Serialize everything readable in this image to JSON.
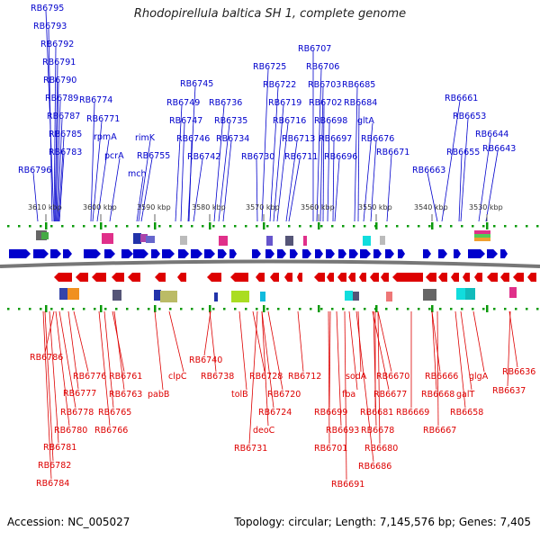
{
  "title": "Rhodopirellula baltica SH 1, complete genome",
  "footer": {
    "accession": "Accession: NC_005027",
    "summary": "Topology: circular; Length: 7,145,576 bp; Genes: 7,405"
  },
  "colors": {
    "forward": "#0000cc",
    "reverse": "#dd0000",
    "backbone": "#888888",
    "tick": "#0a9a0a"
  },
  "scale_ticks": [
    "3610 kbp",
    "3600 kbp",
    "3590 kbp",
    "3580 kbp",
    "3570 kbp",
    "3560 kbp",
    "3550 kbp",
    "3540 kbp",
    "3530 kbp"
  ],
  "forward_labels": [
    "RB6795",
    "RB6793",
    "RB6792",
    "RB6791",
    "RB6790",
    "RB6789",
    "RB6787",
    "RB6785",
    "RB6783",
    "RB6796",
    "RB6774",
    "RB6771",
    "rpmA",
    "pcrA",
    "rimK",
    "RB6755",
    "mch",
    "RB6745",
    "RB6749",
    "RB6747",
    "RB6746",
    "RB6742",
    "RB6736",
    "RB6735",
    "RB6734",
    "RB6725",
    "RB6722",
    "RB6719",
    "RB6716",
    "RB6730",
    "RB6713",
    "RB6711",
    "RB6707",
    "RB6706",
    "RB6703",
    "RB6702",
    "RB6698",
    "RB6697",
    "RB6696",
    "RB6685",
    "RB6684",
    "gltA",
    "RB6676",
    "RB6671",
    "RB6661",
    "RB6653",
    "RB6644",
    "RB6655",
    "RB6643",
    "RB6663"
  ],
  "reverse_labels": [
    "RB6786",
    "RB6776",
    "RB6777",
    "RB6778",
    "RB6780",
    "RB6781",
    "RB6782",
    "RB6784",
    "RB6761",
    "RB6763",
    "RB6765",
    "RB6766",
    "pabB",
    "clpC",
    "RB6740",
    "RB6738",
    "tolB",
    "RB6728",
    "RB6720",
    "RB6724",
    "deoC",
    "RB6731",
    "RB6712",
    "RB6699",
    "RB6693",
    "RB6701",
    "RB6691",
    "fba",
    "sodA",
    "RB6686",
    "RB6677",
    "RB6670",
    "RB6681",
    "RB6678",
    "RB6680",
    "RB6669",
    "RB6666",
    "RB6668",
    "RB6667",
    "galT",
    "RB6658",
    "glgA",
    "RB6636",
    "RB6637"
  ]
}
